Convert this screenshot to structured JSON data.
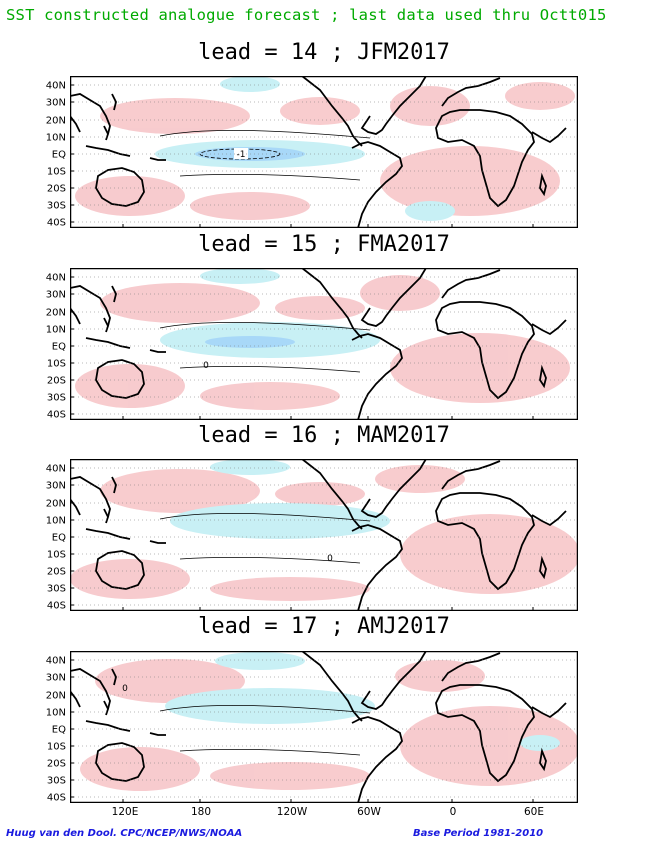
{
  "header": {
    "title": "SST constructed analogue forecast ; last data used thru Octt015"
  },
  "panels": [
    {
      "title": "lead = 14 ; JFM2017",
      "min_contour_label": "-1"
    },
    {
      "title": "lead = 15 ; FMA2017",
      "zero_label": "0"
    },
    {
      "title": "lead = 16 ; MAM2017",
      "zero_label": "0"
    },
    {
      "title": "lead = 17 ; AMJ2017",
      "zero_label": "0"
    }
  ],
  "axes": {
    "lat_ticks": [
      "40N",
      "30N",
      "20N",
      "10N",
      "EQ",
      "10S",
      "20S",
      "30S",
      "40S"
    ],
    "lon_ticks": [
      "120E",
      "180",
      "120W",
      "60W",
      "0",
      "60E"
    ]
  },
  "footer": {
    "credit": "Huug van den Dool. CPC/NCEP/NWS/NOAA",
    "base_period": "Base Period 1981-2010"
  },
  "colors": {
    "warm_anomaly": "#f7c6c9",
    "cool_anomaly": "#c8f0f5",
    "cool_strong": "#a8d8f8",
    "title_green": "#00aa00",
    "footer_blue": "#1a1adf"
  }
}
